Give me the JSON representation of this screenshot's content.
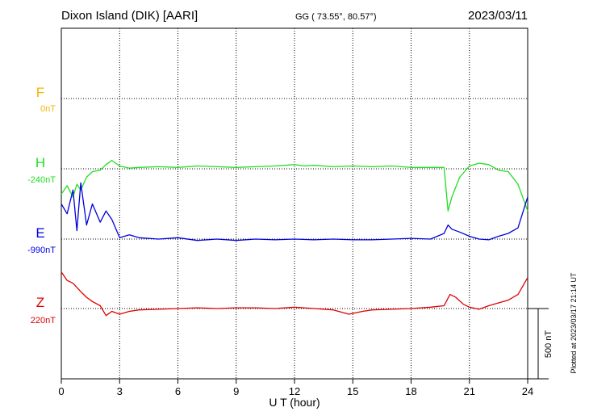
{
  "header": {
    "station": "Dixon Island (DIK)  [AARI]",
    "coords": "GG ( 73.55°,  80.57°)",
    "date": "2023/03/11"
  },
  "side_note": "Plotted at 2023/03/17 21:14 UT",
  "scale_label": "500 nT",
  "chart_data": {
    "type": "line",
    "xlabel": "U T (hour)",
    "xlim": [
      0,
      24
    ],
    "x_ticks": [
      "0",
      "3",
      "6",
      "9",
      "12",
      "15",
      "18",
      "21",
      "24"
    ],
    "grid": true,
    "scale_bar_nT": 500,
    "channels": [
      {
        "name": "F",
        "baseline": "0nT",
        "color": "#f5b400",
        "values": []
      },
      {
        "name": "H",
        "baseline": "-240nT",
        "color": "#22dd22",
        "x": [
          0.0,
          0.3,
          0.6,
          0.8,
          1.0,
          1.3,
          1.6,
          2.0,
          2.3,
          2.6,
          3.0,
          3.5,
          4.0,
          5.0,
          6.0,
          7.0,
          8.0,
          9.0,
          10.0,
          11.0,
          12.0,
          12.5,
          13.0,
          14.0,
          15.0,
          16.0,
          17.0,
          18.0,
          19.0,
          19.7,
          19.9,
          20.1,
          20.5,
          21.0,
          21.5,
          22.0,
          22.5,
          23.0,
          23.5,
          24.0
        ],
        "values": [
          -180,
          -120,
          -200,
          -110,
          -150,
          -60,
          -20,
          -10,
          30,
          60,
          20,
          5,
          10,
          15,
          10,
          20,
          15,
          10,
          15,
          20,
          30,
          20,
          25,
          15,
          20,
          15,
          20,
          10,
          10,
          10,
          -300,
          -200,
          -60,
          20,
          40,
          30,
          -10,
          -20,
          -110,
          -300
        ]
      },
      {
        "name": "E",
        "baseline": "-990nT",
        "color": "#0000dd",
        "x": [
          0.0,
          0.3,
          0.6,
          0.8,
          1.0,
          1.3,
          1.6,
          2.0,
          2.3,
          2.6,
          3.0,
          3.5,
          4.0,
          5.0,
          6.0,
          7.0,
          8.0,
          9.0,
          10.0,
          11.0,
          12.0,
          13.0,
          14.0,
          15.0,
          16.0,
          17.0,
          18.0,
          19.0,
          19.7,
          19.9,
          20.1,
          20.5,
          21.0,
          21.5,
          22.0,
          22.5,
          23.0,
          23.5,
          24.0
        ],
        "values": [
          250,
          180,
          350,
          60,
          400,
          100,
          250,
          120,
          200,
          140,
          10,
          30,
          10,
          0,
          10,
          -10,
          0,
          -10,
          0,
          -5,
          0,
          -5,
          0,
          -5,
          -5,
          0,
          5,
          0,
          40,
          100,
          70,
          50,
          20,
          0,
          -5,
          20,
          40,
          80,
          300
        ]
      },
      {
        "name": "Z",
        "baseline": "220nT",
        "color": "#dd0000",
        "x": [
          0.0,
          0.3,
          0.6,
          1.0,
          1.3,
          1.6,
          2.0,
          2.3,
          2.6,
          3.0,
          3.5,
          4.0,
          5.0,
          6.0,
          7.0,
          8.0,
          9.0,
          10.0,
          11.0,
          12.0,
          13.0,
          14.0,
          14.8,
          15.5,
          16.0,
          17.0,
          18.0,
          19.0,
          19.7,
          20.0,
          20.3,
          20.7,
          21.0,
          21.5,
          22.0,
          22.5,
          23.0,
          23.5,
          24.0
        ],
        "values": [
          260,
          200,
          180,
          120,
          80,
          50,
          20,
          -50,
          -20,
          -40,
          -20,
          -10,
          -5,
          0,
          5,
          0,
          5,
          5,
          0,
          10,
          0,
          -10,
          -40,
          -20,
          -10,
          -5,
          0,
          10,
          20,
          100,
          80,
          30,
          10,
          -5,
          20,
          40,
          60,
          100,
          220
        ]
      }
    ]
  }
}
